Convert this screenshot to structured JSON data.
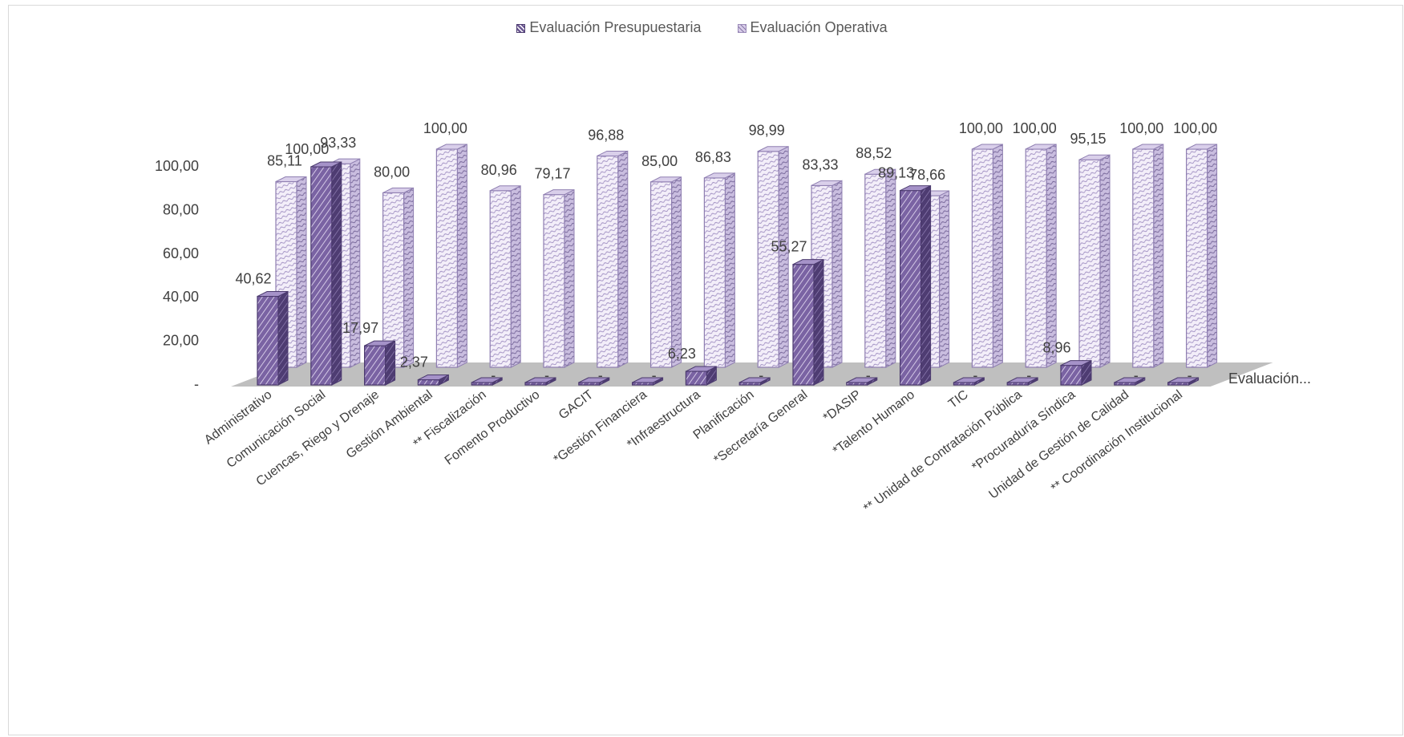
{
  "chart_data": {
    "type": "bar",
    "title": "",
    "categories": [
      "Administrativo",
      "Comunicación Social",
      "Cuencas, Riego y Drenaje",
      "Gestión Ambiental",
      "** Fiscalización",
      "Fomento Productivo",
      "GACIT",
      "*Gestión Financiera",
      "*Infraestructura",
      "Planificación",
      "*Secretaría General",
      "*DASIP",
      "*Talento Humano",
      "TIC",
      "** Unidad de Contratación Pública",
      "*Procuraduría Síndica",
      "Unidad de Gestión de Calidad",
      "** Coordinación Institucional"
    ],
    "series": [
      {
        "name": "Evaluación Presupuestaria",
        "values": [
          40.62,
          100.0,
          17.97,
          2.37,
          null,
          null,
          null,
          null,
          6.23,
          null,
          55.27,
          null,
          89.13,
          null,
          null,
          8.96,
          null,
          null
        ],
        "labels": [
          "40,62",
          "100,00",
          "17,97",
          "2,37",
          "-",
          "-",
          "-",
          "-",
          "6,23",
          "-",
          "55,27",
          "-",
          "89,13",
          "-",
          "-",
          "8,96",
          "-",
          "-"
        ]
      },
      {
        "name": "Evaluación Operativa",
        "values": [
          85.11,
          93.33,
          80.0,
          100.0,
          80.96,
          79.17,
          96.88,
          85.0,
          86.83,
          98.99,
          83.33,
          88.52,
          78.66,
          100.0,
          100.0,
          95.15,
          100.0,
          100.0
        ],
        "labels": [
          "85,11",
          "93,33",
          "80,00",
          "100,00",
          "80,96",
          "79,17",
          "96,88",
          "85,00",
          "86,83",
          "98,99",
          "83,33",
          "88,52",
          "78,66",
          "100,00",
          "100,00",
          "95,15",
          "100,00",
          "100,00"
        ]
      }
    ],
    "y_ticks": [
      "-",
      "20,00",
      "40,00",
      "60,00",
      "80,00",
      "100,00"
    ],
    "ylim": [
      0,
      100
    ],
    "depth_axis_label": "Evaluación...",
    "legend_position": "top",
    "grid": false,
    "colors": {
      "presupuestaria_fill": "#7a63a3",
      "presupuestaria_stroke": "#4b3a6e",
      "operativa_fill": "#ebe4f4",
      "operativa_stroke": "#8f7fb1",
      "floor": "#bfbfbf",
      "text": "#404040"
    }
  }
}
